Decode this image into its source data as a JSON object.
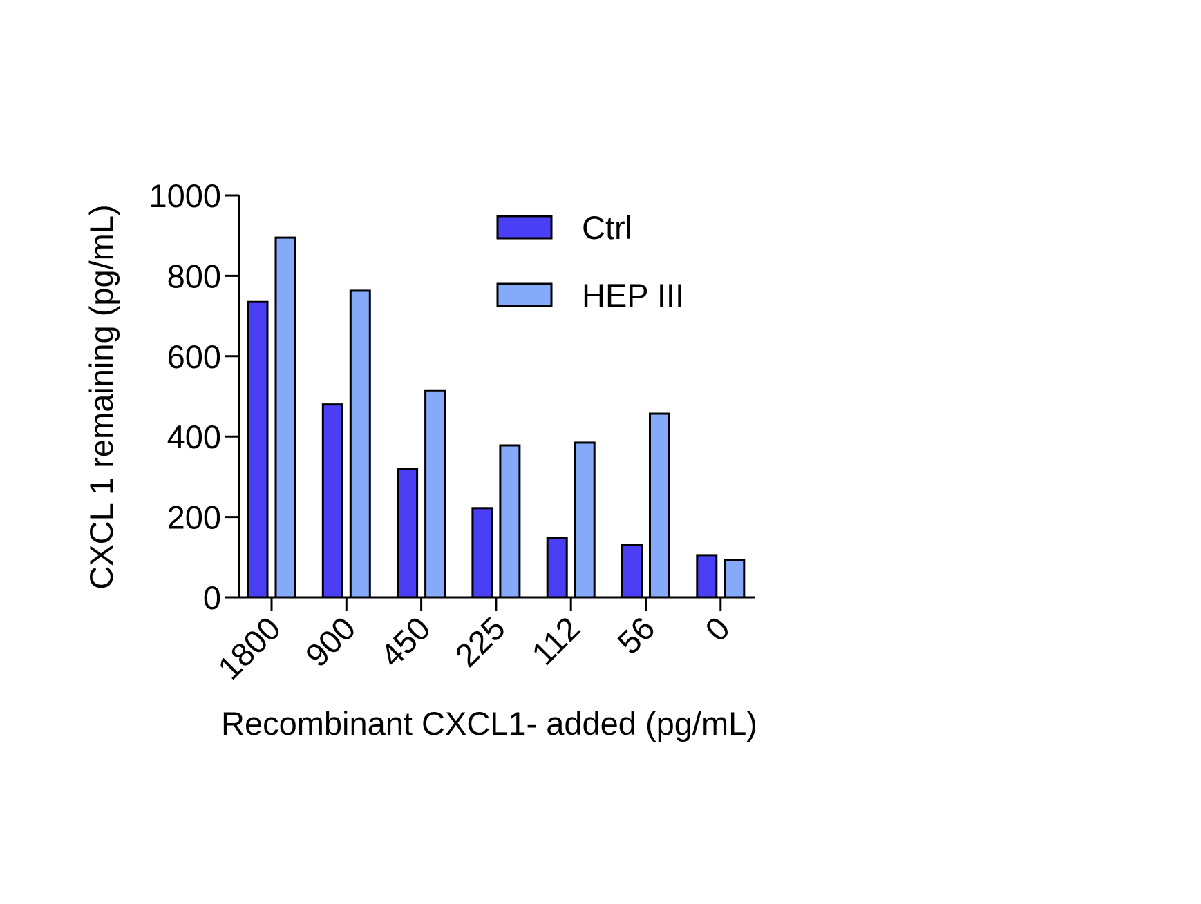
{
  "chart_data": {
    "type": "bar",
    "categories": [
      "1800",
      "900",
      "450",
      "225",
      "112",
      "56",
      "0"
    ],
    "series": [
      {
        "name": "Ctrl",
        "color": "#4a3ff5",
        "values": [
          735,
          480,
          320,
          222,
          147,
          130,
          105
        ]
      },
      {
        "name": "HEP III",
        "color": "#86aafa",
        "values": [
          895,
          763,
          515,
          378,
          385,
          457,
          93
        ]
      }
    ],
    "xlabel": "Recombinant CXCL1- added (pg/mL)",
    "ylabel": "CXCL 1 remaining (pg/mL)",
    "ylim": [
      0,
      1000
    ],
    "yticks": [
      0,
      200,
      400,
      600,
      800,
      1000
    ],
    "grid": false,
    "legend_position": "top-right"
  }
}
